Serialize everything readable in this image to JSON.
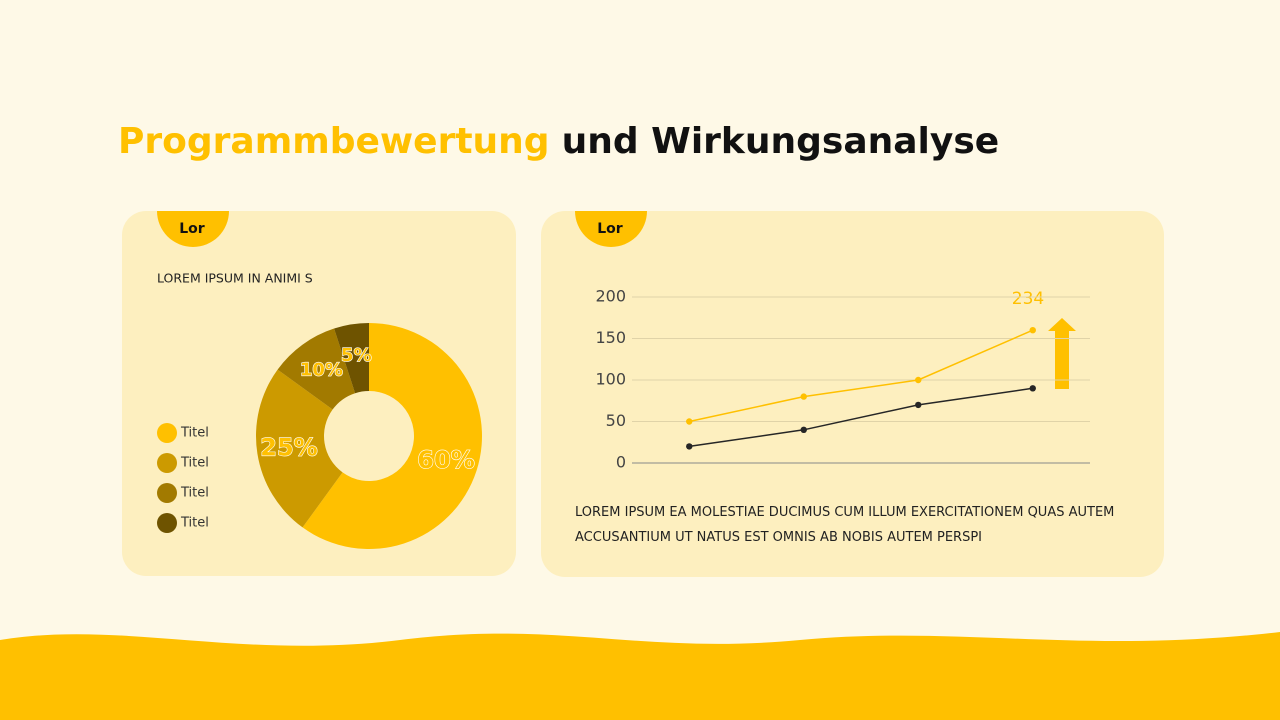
{
  "header": {
    "title_highlight": "Programmbewertung",
    "title_rest": "und Wirkungsanalyse"
  },
  "chart_data": [
    {
      "type": "pie",
      "badge": "Lor",
      "subtitle": "LOREM IPSUM IN ANIMI S",
      "categories": [
        "Titel",
        "Titel",
        "Titel",
        "Titel"
      ],
      "values": [
        60,
        25,
        10,
        5
      ],
      "value_labels": [
        "60%",
        "25%",
        "10%",
        "5%"
      ],
      "colors": [
        "#ffc000",
        "#cc9a00",
        "#a27a00",
        "#6e5300"
      ],
      "donut": true,
      "legend": "left"
    },
    {
      "type": "line",
      "badge": "Lor",
      "annotation": "234",
      "categories": [
        null,
        null,
        null,
        null
      ],
      "series": [
        {
          "color": "#ffc000",
          "values": [
            50,
            80,
            100,
            160
          ]
        },
        {
          "color": "#262626",
          "values": [
            20,
            40,
            70,
            90
          ]
        }
      ],
      "ylim": [
        0,
        200
      ],
      "yticks": [
        0,
        50,
        100,
        150,
        200
      ],
      "grid": true,
      "caption": "LOREM IPSUM EA MOLESTIAE DUCIMUS CUM ILLUM EXERCITATIONEM QUAS AUTEM ACCUSANTIUM UT NATUS EST OMNIS AB NOBIS AUTEM PERSPI"
    }
  ]
}
